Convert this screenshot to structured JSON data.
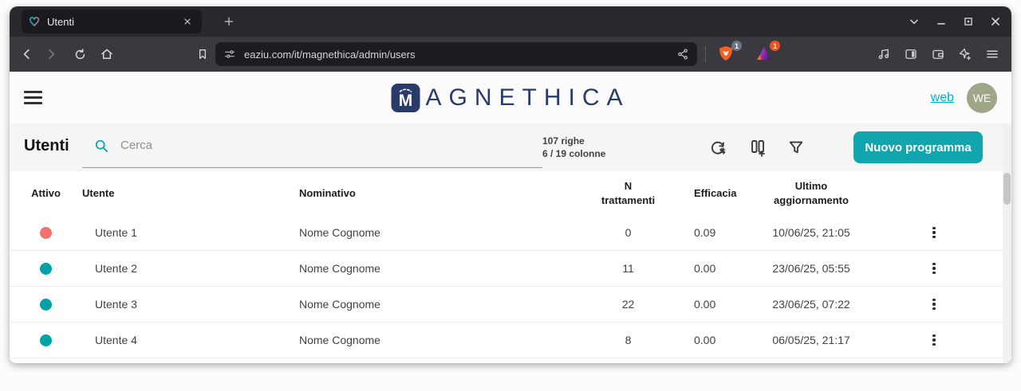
{
  "colors": {
    "tabbar_bg": "#29282e",
    "tab_bg": "#1b1a20",
    "navbar_bg": "#3a393f",
    "urlbar_bg": "#1d1c22",
    "header_bg": "#fbfbfc",
    "toolbar_bg": "#f5f5f6",
    "brand_navy": "#2a3b6a",
    "link_teal": "#00b4c5",
    "avatar_bg": "#9da687",
    "accent": "#11a6ad",
    "dot_active": "#00a1a7",
    "dot_inactive": "#f4716d"
  },
  "browser": {
    "tab_title": "Utenti",
    "url": "eaziu.com/it/magnethica/admin/users",
    "extensions": [
      {
        "name": "shield-extension",
        "badge": "1"
      },
      {
        "name": "triangle-extension",
        "badge": "1"
      }
    ]
  },
  "app": {
    "brand_initial": "M",
    "brand_rest": "AGNETHICA",
    "web_link": "web",
    "avatar_initials": "WE",
    "toolbar": {
      "title": "Utenti",
      "search_placeholder": "Cerca",
      "rows_info": "107 righe",
      "columns_info": "6 / 19 colonne",
      "new_button_label": "Nuovo programma"
    },
    "table": {
      "columns": [
        "Attivo",
        "Utente",
        "Nominativo",
        "N\ntrattamenti",
        "Efficacia",
        "Ultimo\naggiornamento"
      ],
      "rows": [
        {
          "active": false,
          "user": "Utente 1",
          "name": "Nome Cognome",
          "treatments": "0",
          "efficacy": "0.09",
          "updated": "10/06/25, 21:05"
        },
        {
          "active": true,
          "user": "Utente 2",
          "name": "Nome Cognome",
          "treatments": "11",
          "efficacy": "0.00",
          "updated": "23/06/25, 05:55"
        },
        {
          "active": true,
          "user": "Utente 3",
          "name": "Nome Cognome",
          "treatments": "22",
          "efficacy": "0.00",
          "updated": "23/06/25, 07:22"
        },
        {
          "active": true,
          "user": "Utente 4",
          "name": "Nome Cognome",
          "treatments": "8",
          "efficacy": "0.00",
          "updated": "06/05/25, 21:17"
        }
      ]
    }
  }
}
